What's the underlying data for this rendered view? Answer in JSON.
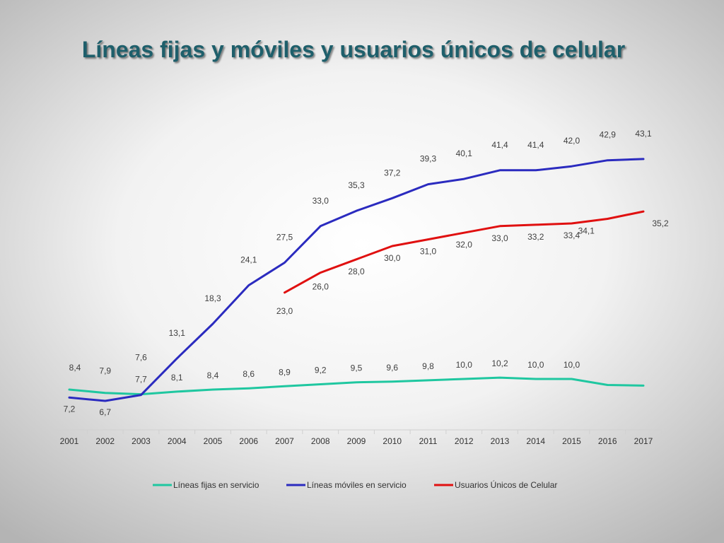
{
  "colors": {
    "title": "#1e5f6b",
    "fijas": "#1fc7a0",
    "moviles": "#2b2bbf",
    "usuarios": "#e01010"
  },
  "chart_data": {
    "type": "line",
    "title": "Líneas fijas y móviles y usuarios únicos de celular",
    "x": [
      "2001",
      "2002",
      "2003",
      "2004",
      "2005",
      "2006",
      "2007",
      "2008",
      "2009",
      "2010",
      "2011",
      "2012",
      "2013",
      "2014",
      "2015",
      "2016",
      "2017"
    ],
    "ylim": [
      0,
      50
    ],
    "grid": false,
    "legend_position": "bottom",
    "series": [
      {
        "name": "Líneas fijas en servicio",
        "color": "#1fc7a0",
        "values": [
          8.4,
          7.9,
          7.7,
          8.1,
          8.4,
          8.6,
          8.9,
          9.2,
          9.5,
          9.6,
          9.8,
          10.0,
          10.2,
          10.0,
          10.0,
          9.1,
          9.0
        ],
        "labels": [
          "8,4",
          "7,9",
          "7,7",
          "8,1",
          "8,4",
          "8,6",
          "8,9",
          "9,2",
          "9,5",
          "9,6",
          "9,8",
          "10,0",
          "10,2",
          "10,0",
          "10,0",
          "",
          ""
        ]
      },
      {
        "name": "Líneas móviles en servicio",
        "color": "#2b2bbf",
        "values": [
          7.2,
          6.7,
          7.6,
          13.1,
          18.3,
          24.1,
          27.5,
          33.0,
          35.3,
          37.2,
          39.3,
          40.1,
          41.4,
          41.4,
          42.0,
          42.9,
          43.1
        ],
        "labels": [
          "7,2",
          "6,7",
          "7,6",
          "13,1",
          "18,3",
          "24,1",
          "27,5",
          "33,0",
          "35,3",
          "37,2",
          "39,3",
          "40,1",
          "41,4",
          "41,4",
          "42,0",
          "42,9",
          "43,1"
        ]
      },
      {
        "name": "Usuarios Únicos de Celular",
        "color": "#e01010",
        "values": [
          null,
          null,
          null,
          null,
          null,
          null,
          23.0,
          26.0,
          28.0,
          30.0,
          31.0,
          32.0,
          33.0,
          33.2,
          33.4,
          34.1,
          35.2
        ],
        "labels": [
          "",
          "",
          "",
          "",
          "",
          "",
          "23,0",
          "26,0",
          "28,0",
          "30,0",
          "31,0",
          "32,0",
          "33,0",
          "33,2",
          "33,4",
          "34,1",
          "35,2"
        ]
      }
    ]
  }
}
